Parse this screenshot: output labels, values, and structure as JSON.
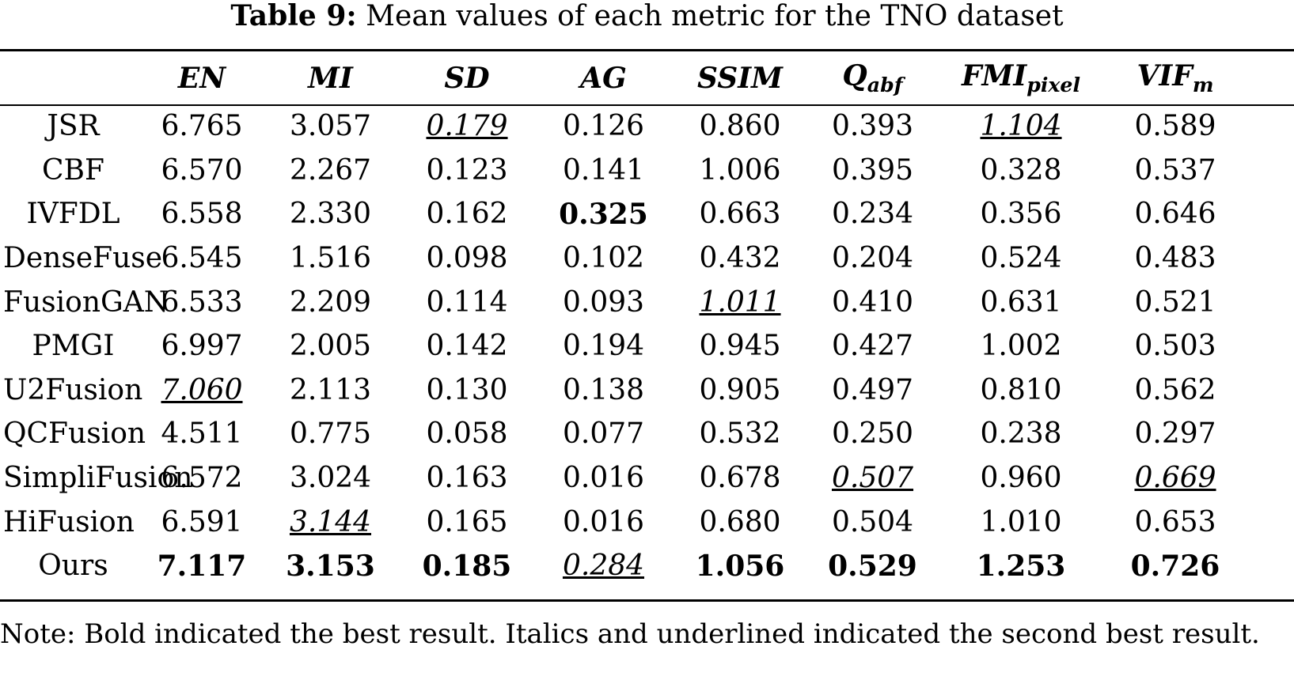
{
  "caption": {
    "label": "Table 9:",
    "text": "Mean values of each metric for the TNO dataset"
  },
  "table": {
    "headers": [
      "",
      "EN",
      "MI",
      "SD",
      "AG",
      "SSIM",
      "Q_abf",
      "FMI_pixel",
      "VIF_m"
    ],
    "header_display": {
      "q_main": "Q",
      "q_sub": "abf",
      "fmi_main": "FMI",
      "fmi_sub": "pixel",
      "vif_main": "VIF",
      "vif_sub": "m"
    },
    "rows": [
      {
        "method": "JSR",
        "values": [
          "6.765",
          "3.057",
          "0.179",
          "0.126",
          "0.860",
          "0.393",
          "1.104",
          "0.589"
        ],
        "style": [
          "",
          "",
          "second",
          "",
          "",
          "",
          "second",
          ""
        ]
      },
      {
        "method": "CBF",
        "values": [
          "6.570",
          "2.267",
          "0.123",
          "0.141",
          "1.006",
          "0.395",
          "0.328",
          "0.537"
        ],
        "style": [
          "",
          "",
          "",
          "",
          "",
          "",
          "",
          ""
        ]
      },
      {
        "method": "IVFDL",
        "values": [
          "6.558",
          "2.330",
          "0.162",
          "0.325",
          "0.663",
          "0.234",
          "0.356",
          "0.646"
        ],
        "style": [
          "",
          "",
          "",
          "best",
          "",
          "",
          "",
          ""
        ]
      },
      {
        "method": "DenseFuse",
        "values": [
          "6.545",
          "1.516",
          "0.098",
          "0.102",
          "0.432",
          "0.204",
          "0.524",
          "0.483"
        ],
        "style": [
          "",
          "",
          "",
          "",
          "",
          "",
          "",
          ""
        ]
      },
      {
        "method": "FusionGAN",
        "values": [
          "6.533",
          "2.209",
          "0.114",
          "0.093",
          "1.011",
          "0.410",
          "0.631",
          "0.521"
        ],
        "style": [
          "",
          "",
          "",
          "",
          "second",
          "",
          "",
          ""
        ]
      },
      {
        "method": "PMGI",
        "values": [
          "6.997",
          "2.005",
          "0.142",
          "0.194",
          "0.945",
          "0.427",
          "1.002",
          "0.503"
        ],
        "style": [
          "",
          "",
          "",
          "",
          "",
          "",
          "",
          ""
        ]
      },
      {
        "method": "U2Fusion",
        "values": [
          "7.060",
          "2.113",
          "0.130",
          "0.138",
          "0.905",
          "0.497",
          "0.810",
          "0.562"
        ],
        "style": [
          "second",
          "",
          "",
          "",
          "",
          "",
          "",
          ""
        ]
      },
      {
        "method": "QCFusion",
        "values": [
          "4.511",
          "0.775",
          "0.058",
          "0.077",
          "0.532",
          "0.250",
          "0.238",
          "0.297"
        ],
        "style": [
          "",
          "",
          "",
          "",
          "",
          "",
          "",
          ""
        ]
      },
      {
        "method": "SimpliFusion",
        "values": [
          "6.572",
          "3.024",
          "0.163",
          "0.016",
          "0.678",
          "0.507",
          "0.960",
          "0.669"
        ],
        "style": [
          "",
          "",
          "",
          "",
          "",
          "second",
          "",
          "second"
        ]
      },
      {
        "method": "HiFusion",
        "values": [
          "6.591",
          "3.144",
          "0.165",
          "0.016",
          "0.680",
          "0.504",
          "1.010",
          "0.653"
        ],
        "style": [
          "",
          "second",
          "",
          "",
          "",
          "",
          "",
          ""
        ]
      },
      {
        "method": "Ours",
        "values": [
          "7.117",
          "3.153",
          "0.185",
          "0.284",
          "1.056",
          "0.529",
          "1.253",
          "0.726"
        ],
        "style": [
          "best",
          "best",
          "best",
          "second",
          "best",
          "best",
          "best",
          "best"
        ]
      }
    ]
  },
  "note": "Note: Bold indicated the best result. Italics and underlined indicated the second best result."
}
